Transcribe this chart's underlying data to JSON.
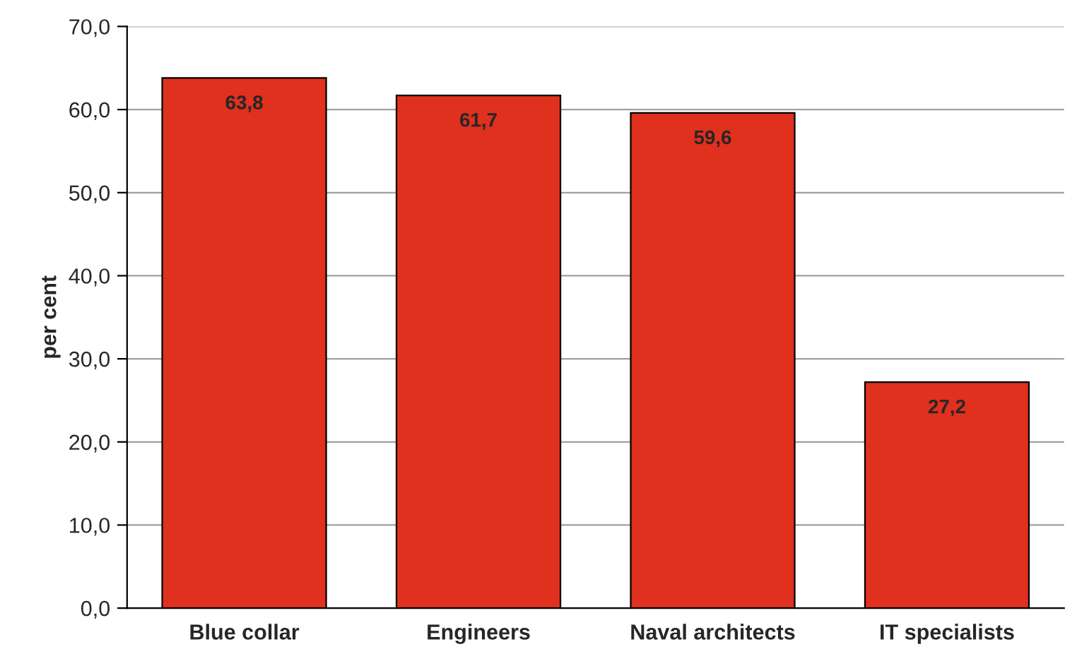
{
  "chart_data": {
    "type": "bar",
    "ylabel": "per cent",
    "categories": [
      "Blue collar",
      "Engineers",
      "Naval architects",
      "IT specialists"
    ],
    "values": [
      63.8,
      61.7,
      59.6,
      27.2
    ],
    "value_labels": [
      "63,8",
      "61,7",
      "59,6",
      "27,2"
    ],
    "color": "#e0301e",
    "ylim": [
      0,
      70
    ],
    "yticks": [
      {
        "value": 0,
        "label": "0,0"
      },
      {
        "value": 10,
        "label": "10,0"
      },
      {
        "value": 20,
        "label": "20,0"
      },
      {
        "value": 30,
        "label": "30,0"
      },
      {
        "value": 40,
        "label": "40,0"
      },
      {
        "value": 50,
        "label": "50,0"
      },
      {
        "value": 60,
        "label": "60,0"
      },
      {
        "value": 70,
        "label": "70,0"
      }
    ],
    "grid": "y",
    "legend": false
  }
}
